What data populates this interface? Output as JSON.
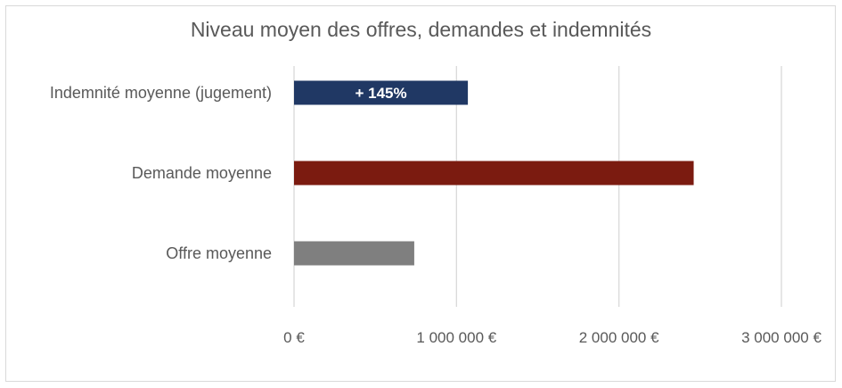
{
  "chart_data": {
    "type": "bar",
    "orientation": "horizontal",
    "title": "Niveau moyen des offres, demandes et indemnités",
    "xlabel": "",
    "ylabel": "",
    "xlim": [
      0,
      3000000
    ],
    "grid": true,
    "legend": "none",
    "x_ticks": [
      {
        "value": 0,
        "label": "0 €"
      },
      {
        "value": 1000000,
        "label": "1 000 000 €"
      },
      {
        "value": 2000000,
        "label": "2 000 000 €"
      },
      {
        "value": 3000000,
        "label": "3 000 000 €"
      }
    ],
    "categories": [
      "Indemnité moyenne (jugement)",
      "Demande moyenne",
      "Offre moyenne"
    ],
    "values": [
      1070000,
      2460000,
      740000
    ],
    "colors": [
      "#203864",
      "#7b1b10",
      "#7f7f7f"
    ],
    "data_labels": [
      "+ 145%",
      "",
      ""
    ]
  }
}
